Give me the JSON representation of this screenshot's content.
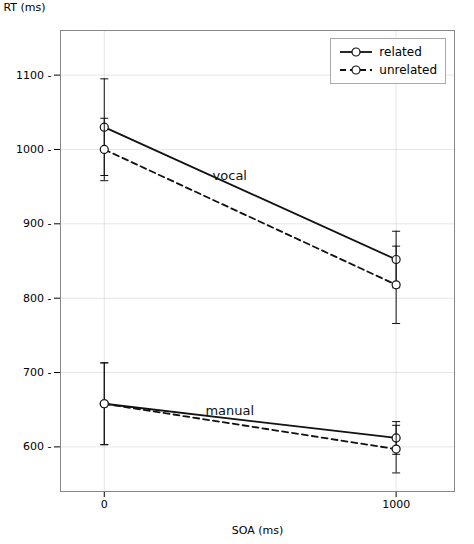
{
  "chart_data": {
    "type": "line",
    "x": [
      0,
      1000
    ],
    "series": [
      {
        "name": "related",
        "values": [
          1030,
          852
        ],
        "errors": [
          65,
          38
        ],
        "line_style": "solid"
      },
      {
        "name": "unrelated",
        "values": [
          1000,
          818
        ],
        "errors": [
          42,
          52
        ],
        "line_style": "dashed"
      },
      {
        "values": [
          658,
          612
        ],
        "errors": [
          55,
          22
        ],
        "line_style": "solid"
      },
      {
        "values": [
          658,
          597
        ],
        "errors": [
          55,
          32
        ],
        "line_style": "dashed"
      }
    ],
    "color": "#111111",
    "marker": "circle",
    "xlabel": "SOA (ms)",
    "ylabel": "RT (ms)",
    "xlim": [
      -150,
      1200
    ],
    "ylim": [
      540,
      1160
    ],
    "xticks": [
      0,
      1000
    ],
    "yticks": [
      {
        "value": 600,
        "label": "600 -"
      },
      {
        "value": 700,
        "label": "700 -"
      },
      {
        "value": 800,
        "label": "800 -"
      },
      {
        "value": 900,
        "label": "900 -"
      },
      {
        "value": 1000,
        "label": "1000 -"
      },
      {
        "value": 1100,
        "label": "1100 -"
      }
    ],
    "grid": true,
    "legend": "upper right",
    "annotations": [
      {
        "text": "vocal",
        "x": 430,
        "y": 965
      },
      {
        "text": "manual",
        "x": 430,
        "y": 648
      }
    ]
  }
}
